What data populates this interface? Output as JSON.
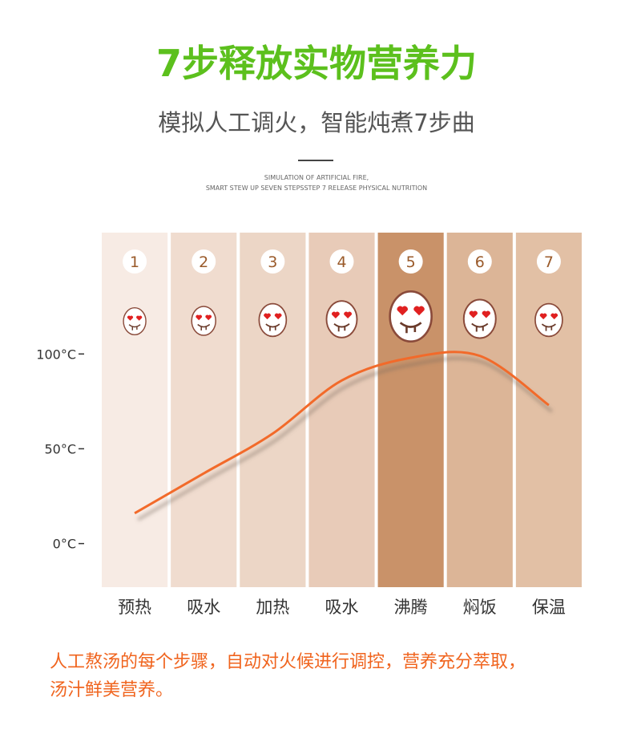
{
  "header": {
    "title": "7步释放实物营养力",
    "subtitle": "模拟人工调火，智能炖煮7步曲",
    "caption": [
      "SIMULATION OF ARTIFICIAL FIRE,",
      "SMART STEW UP SEVEN STEPSSTEP 7 RELEASE PHYSICAL NUTRITION"
    ]
  },
  "chart_data": {
    "type": "line",
    "categories": [
      "预热",
      "吸水",
      "加热",
      "吸水",
      "沸腾",
      "焖饭",
      "保温"
    ],
    "step_numbers": [
      1,
      2,
      3,
      4,
      5,
      6,
      7
    ],
    "values": [
      16,
      37,
      58,
      86,
      98,
      99,
      73
    ],
    "color": "#f26a2a",
    "band_colors": [
      "#f7ebe4",
      "#f0dccf",
      "#ecd6c6",
      "#e8cbb8",
      "#c99269",
      "#dcb597",
      "#e2c0a5"
    ],
    "ylim": [
      -23,
      164
    ],
    "yticks": [
      {
        "value": 0,
        "label": "0°C"
      },
      {
        "value": 50,
        "label": "50°C"
      },
      {
        "value": 100,
        "label": "100°C"
      }
    ]
  },
  "footer": [
    "人工熬汤的每个步骤，自动对火候进行调控，营养充分萃取，",
    "汤汁鲜美营养。"
  ]
}
